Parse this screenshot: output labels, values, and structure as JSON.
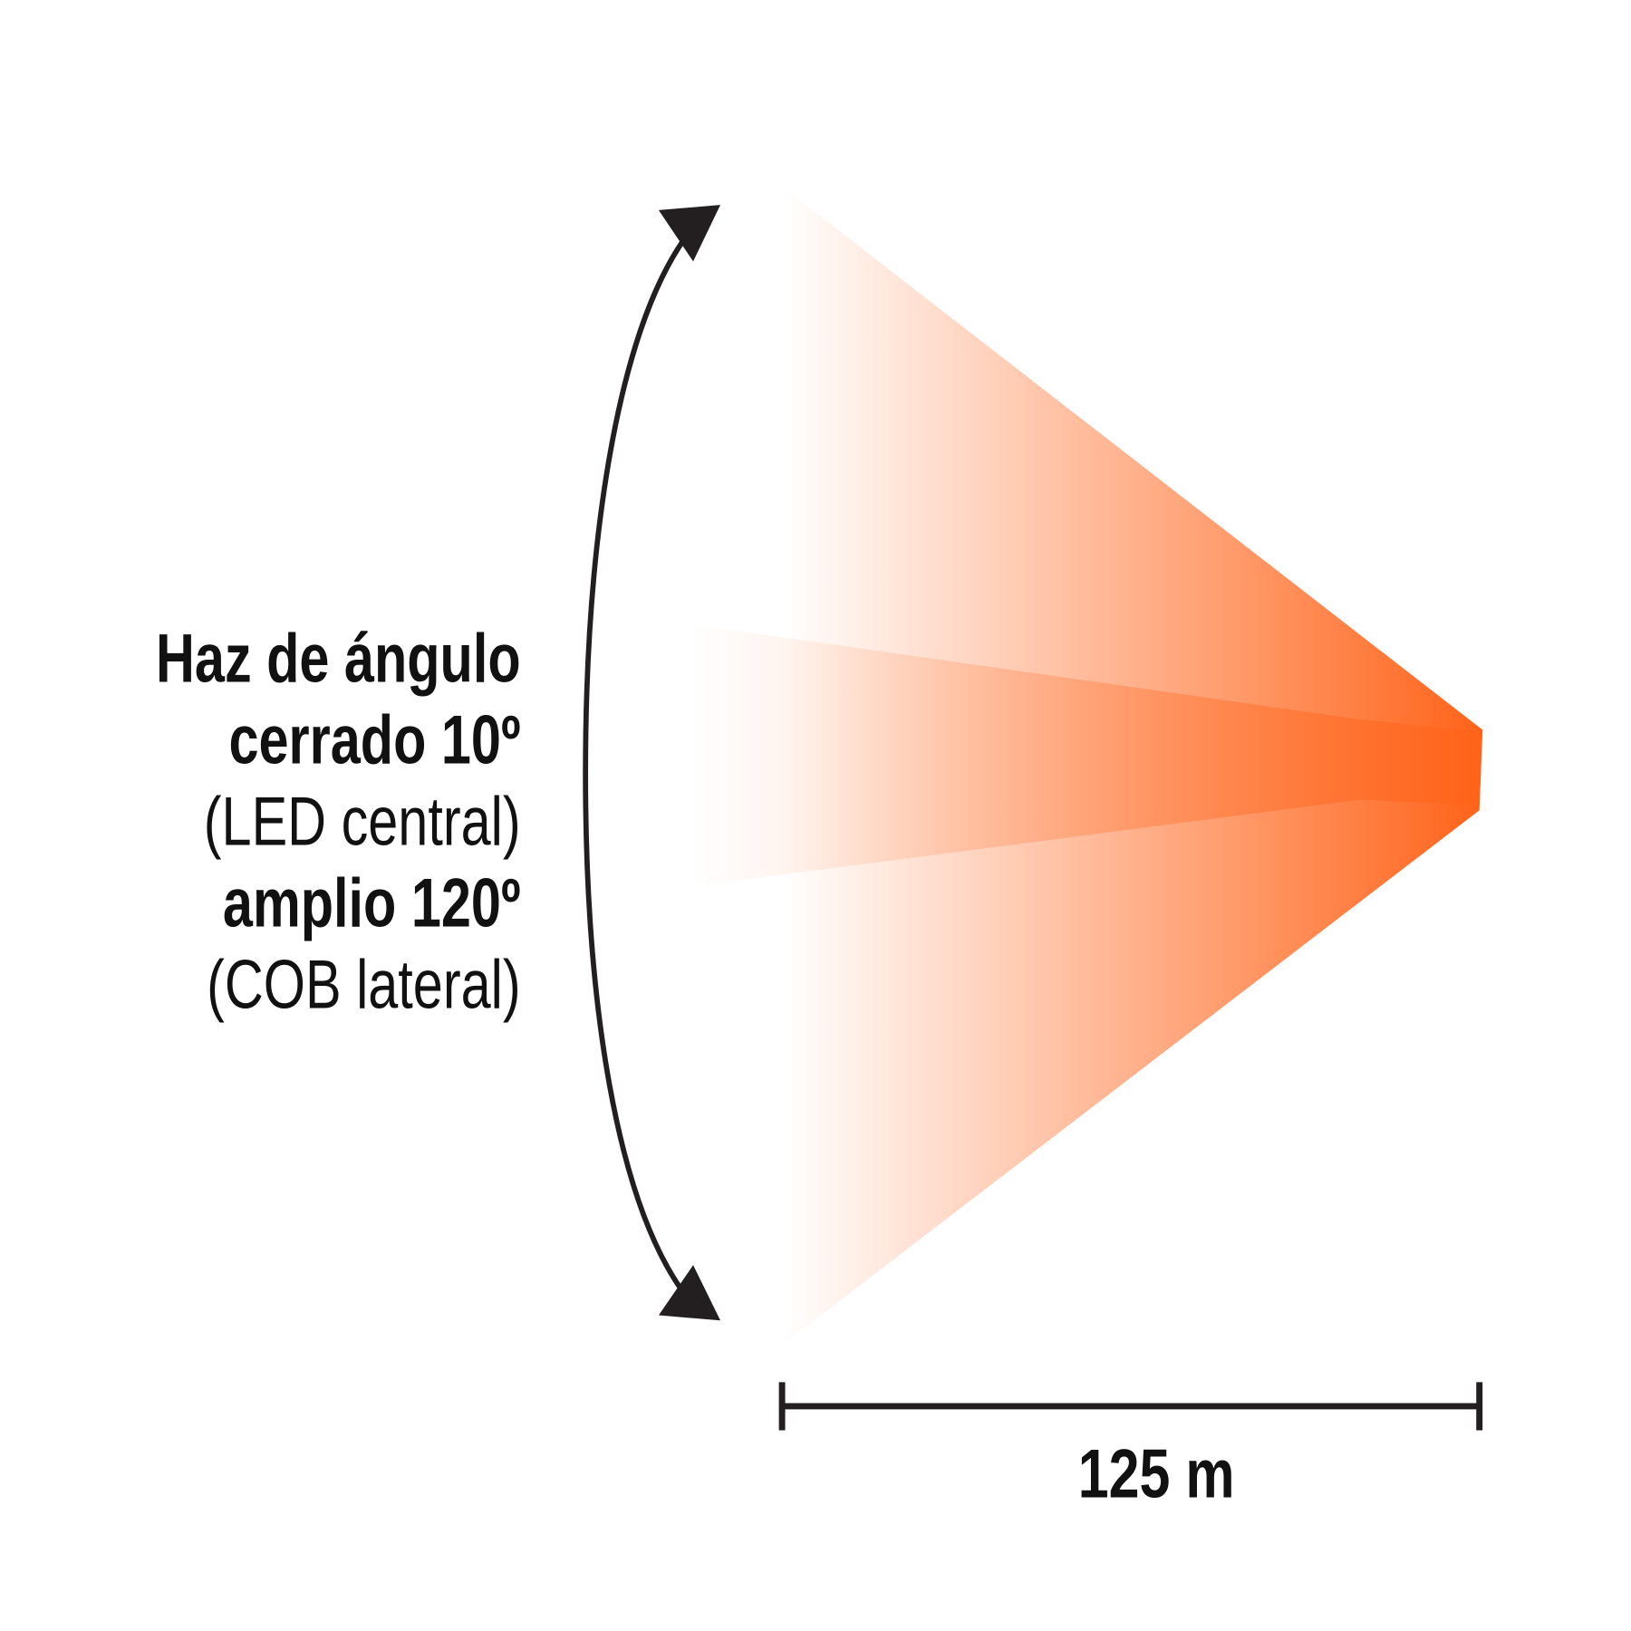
{
  "labels": {
    "line1": "Haz de ángulo",
    "line2": "cerrado 10º",
    "line3": "(LED central)",
    "line4": "amplio 120º",
    "line5": "(COB lateral)"
  },
  "distance": "125 m",
  "colors": {
    "beam": "#ff6319",
    "ink": "#231f20"
  }
}
